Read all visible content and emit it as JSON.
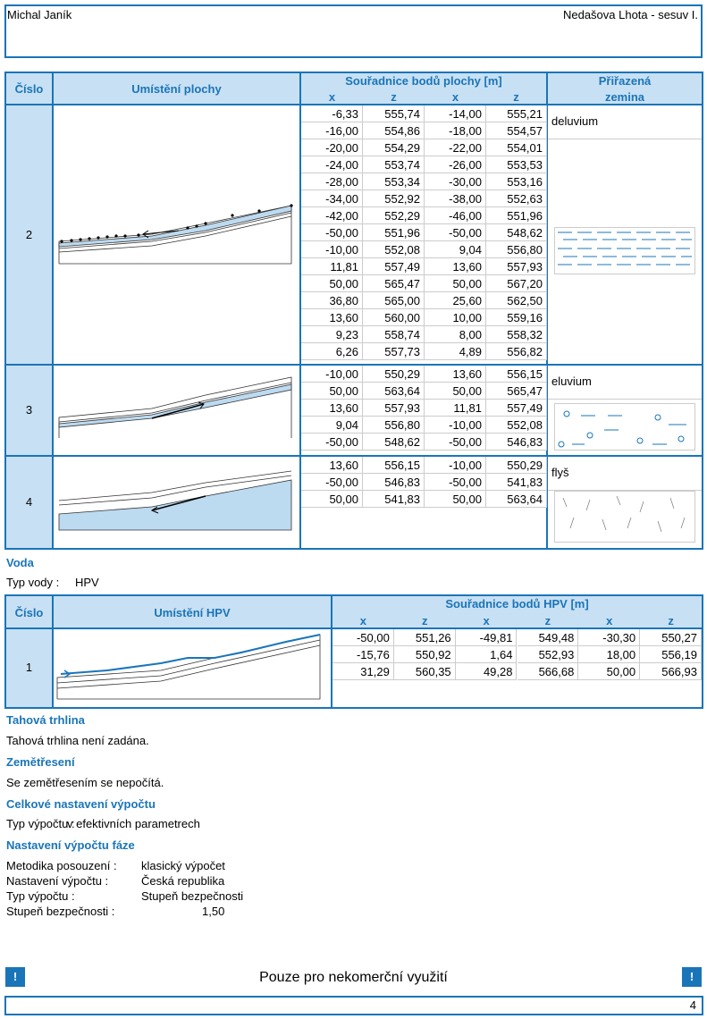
{
  "header": {
    "author": "Michal Janík",
    "project": "Nedašova Lhota - sesuv I."
  },
  "surfaces": {
    "headers": {
      "number": "Číslo",
      "location": "Umístění plochy",
      "coords": "Souřadnice bodů plochy [m]",
      "axes": [
        "x",
        "z",
        "x",
        "z"
      ],
      "soil": [
        "Přiřazená",
        "zemina"
      ]
    },
    "rows": [
      {
        "number": "2",
        "soil": "deluvium",
        "coords": [
          [
            "-6,33",
            "555,74",
            "-14,00",
            "555,21"
          ],
          [
            "-16,00",
            "554,86",
            "-18,00",
            "554,57"
          ],
          [
            "-20,00",
            "554,29",
            "-22,00",
            "554,01"
          ],
          [
            "-24,00",
            "553,74",
            "-26,00",
            "553,53"
          ],
          [
            "-28,00",
            "553,34",
            "-30,00",
            "553,16"
          ],
          [
            "-34,00",
            "552,92",
            "-38,00",
            "552,63"
          ],
          [
            "-42,00",
            "552,29",
            "-46,00",
            "551,96"
          ],
          [
            "-50,00",
            "551,96",
            "-50,00",
            "548,62"
          ],
          [
            "-10,00",
            "552,08",
            "9,04",
            "556,80"
          ],
          [
            "11,81",
            "557,49",
            "13,60",
            "557,93"
          ],
          [
            "50,00",
            "565,47",
            "50,00",
            "567,20"
          ],
          [
            "36,80",
            "565,00",
            "25,60",
            "562,50"
          ],
          [
            "13,60",
            "560,00",
            "10,00",
            "559,16"
          ],
          [
            "9,23",
            "558,74",
            "8,00",
            "558,32"
          ],
          [
            "6,26",
            "557,73",
            "4,89",
            "556,82"
          ]
        ]
      },
      {
        "number": "3",
        "soil": "eluvium",
        "coords": [
          [
            "-10,00",
            "550,29",
            "13,60",
            "556,15"
          ],
          [
            "50,00",
            "563,64",
            "50,00",
            "565,47"
          ],
          [
            "13,60",
            "557,93",
            "11,81",
            "557,49"
          ],
          [
            "9,04",
            "556,80",
            "-10,00",
            "552,08"
          ],
          [
            "-50,00",
            "548,62",
            "-50,00",
            "546,83"
          ]
        ]
      },
      {
        "number": "4",
        "soil": "flyš",
        "coords": [
          [
            "13,60",
            "556,15",
            "-10,00",
            "550,29"
          ],
          [
            "-50,00",
            "546,83",
            "-50,00",
            "541,83"
          ],
          [
            "50,00",
            "541,83",
            "50,00",
            "563,64"
          ]
        ]
      }
    ]
  },
  "water": {
    "title": "Voda",
    "type_label": "Typ vody :",
    "type_value": "HPV",
    "headers": {
      "number": "Číslo",
      "location": "Umístění HPV",
      "coords": "Souřadnice bodů HPV [m]",
      "axes": [
        "x",
        "z",
        "x",
        "z",
        "x",
        "z"
      ]
    },
    "rows": [
      {
        "number": "1",
        "coords": [
          [
            "-50,00",
            "551,26",
            "-49,81",
            "549,48",
            "-30,30",
            "550,27"
          ],
          [
            "-15,76",
            "550,92",
            "1,64",
            "552,93",
            "18,00",
            "556,19"
          ],
          [
            "31,29",
            "560,35",
            "49,28",
            "566,68",
            "50,00",
            "566,93"
          ]
        ]
      }
    ]
  },
  "tension_crack": {
    "title": "Tahová trhlina",
    "text": "Tahová trhlina není zadána."
  },
  "earthquake": {
    "title": "Zemětřesení",
    "text": "Se zemětřesením se nepočítá."
  },
  "overall": {
    "title": "Celkové nastavení výpočtu",
    "label": "Typ výpočtu :",
    "value": "v efektivních parametrech"
  },
  "stage": {
    "title": "Nastavení výpočtu fáze",
    "items": [
      {
        "label": "Metodika posouzení :",
        "value": "klasický výpočet"
      },
      {
        "label": "Nastavení výpočtu :",
        "value": "Česká republika"
      },
      {
        "label": "Typ výpočtu :",
        "value": "Stupeň bezpečnosti"
      },
      {
        "label": "Stupeň bezpečnosti :",
        "value": "1,50"
      }
    ]
  },
  "footer": {
    "mark_left": "!",
    "notice": "Pouze pro nekomerční využití",
    "mark_right": "!",
    "page": "4"
  }
}
